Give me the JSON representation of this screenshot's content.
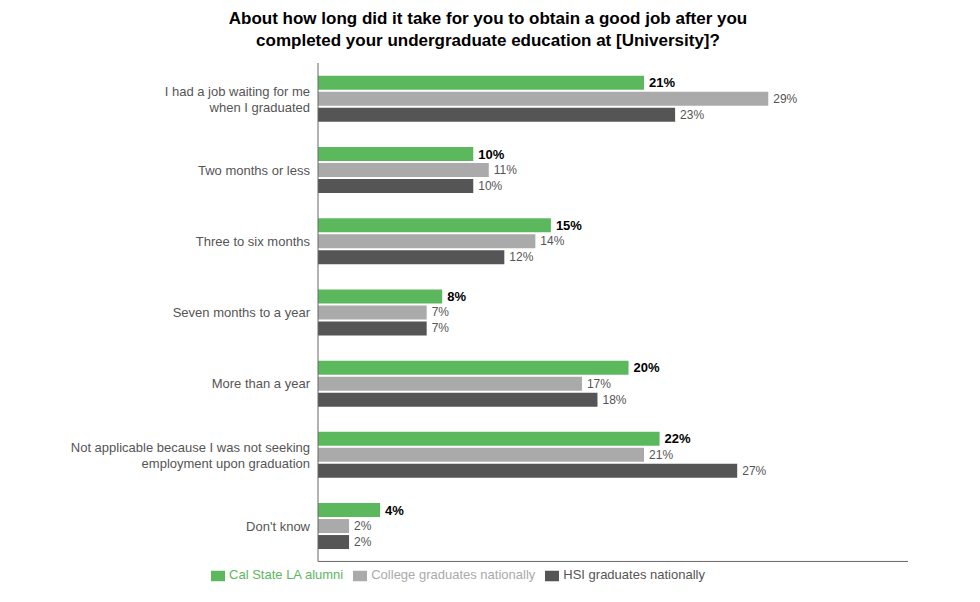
{
  "chart_data": {
    "type": "bar",
    "orientation": "horizontal",
    "title": "About how long did it take for you to obtain a good job after you\ncompleted your undergraduate education at [University]?",
    "categories": [
      "I had a job waiting for me\nwhen I graduated",
      "Two months or less",
      "Three to six months",
      "Seven months to a year",
      "More than a year",
      "Not applicable because I was not seeking\nemployment upon graduation",
      "Don't know"
    ],
    "series": [
      {
        "name": "Cal State LA alumni",
        "color": "#5cb85c",
        "values": [
          21,
          10,
          15,
          8,
          20,
          22,
          4
        ],
        "value_labels": [
          "21%",
          "10%",
          "15%",
          "8%",
          "20%",
          "22%",
          "4%"
        ]
      },
      {
        "name": "College graduates nationally",
        "color": "#aaaaaa",
        "values": [
          29,
          11,
          14,
          7,
          17,
          21,
          2
        ],
        "value_labels": [
          "29%",
          "11%",
          "14%",
          "7%",
          "17%",
          "21%",
          "2%"
        ]
      },
      {
        "name": "HSI graduates nationally",
        "color": "#555555",
        "values": [
          23,
          10,
          12,
          7,
          18,
          27,
          2
        ],
        "value_labels": [
          "23%",
          "10%",
          "12%",
          "7%",
          "18%",
          "27%",
          "2%"
        ]
      }
    ],
    "xlim": [
      0,
      38
    ],
    "data_labels": true,
    "tick_labels": "y",
    "legend": "bottom",
    "grid": false
  }
}
